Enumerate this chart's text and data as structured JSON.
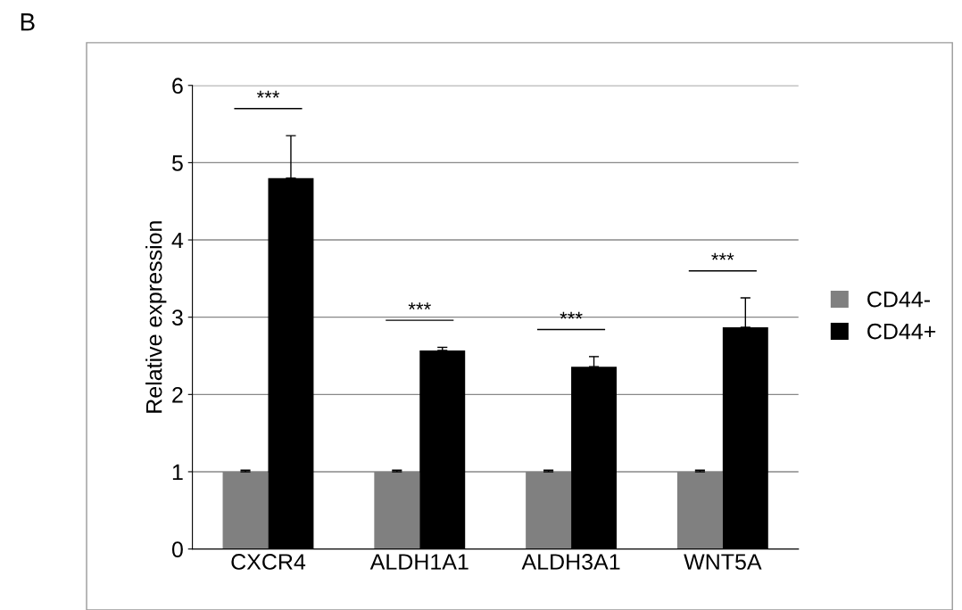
{
  "chart_data": {
    "type": "bar",
    "title": "B",
    "ylabel": "Relative expression",
    "categories": [
      "CXCR4",
      "ALDH1A1",
      "ALDH3A1",
      "WNT5A"
    ],
    "series": [
      {
        "name": "CD44-",
        "color": "#808080",
        "values": [
          1,
          1,
          1,
          1
        ],
        "errors": [
          0.02,
          0.02,
          0.02,
          0.02
        ]
      },
      {
        "name": "CD44+",
        "color": "#000000",
        "values": [
          4.8,
          2.57,
          2.36,
          2.87
        ],
        "errors": [
          0.55,
          0.04,
          0.13,
          0.38
        ]
      }
    ],
    "annotations": [
      "***",
      "***",
      "***",
      "***"
    ],
    "ylim": [
      0,
      6
    ],
    "yticks": [
      0,
      1,
      2,
      3,
      4,
      5,
      6
    ],
    "grid": "y",
    "legend": "right"
  }
}
